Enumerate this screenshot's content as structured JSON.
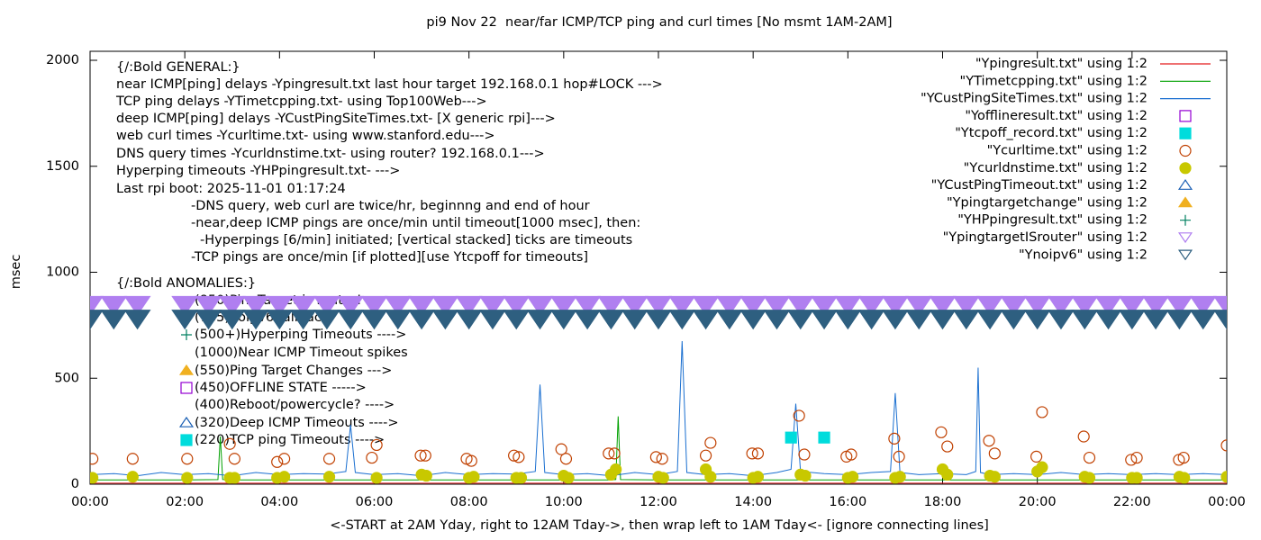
{
  "chart_data": {
    "type": "line",
    "title": "pi9 Nov 22  near/far ICMP/TCP ping and curl times [No msmt 1AM-2AM]",
    "x_label": "<-START at 2AM Yday, right to 12AM Tday->, then wrap left to 1AM Tday<- [ignore connecting lines]",
    "y_label": "msec",
    "xlim": [
      0,
      24
    ],
    "xticks": [
      {
        "value": 0,
        "label": "00:00"
      },
      {
        "value": 2,
        "label": "02:00"
      },
      {
        "value": 4,
        "label": "04:00"
      },
      {
        "value": 6,
        "label": "06:00"
      },
      {
        "value": 8,
        "label": "08:00"
      },
      {
        "value": 10,
        "label": "10:00"
      },
      {
        "value": 12,
        "label": "12:00"
      },
      {
        "value": 14,
        "label": "14:00"
      },
      {
        "value": 16,
        "label": "16:00"
      },
      {
        "value": 18,
        "label": "18:00"
      },
      {
        "value": 20,
        "label": "20:00"
      },
      {
        "value": 22,
        "label": "22:00"
      },
      {
        "value": 24,
        "label": "00:00"
      }
    ],
    "ylim": [
      0,
      2000
    ],
    "yticks": [
      0,
      500,
      1000,
      1500,
      2000
    ],
    "grid": false,
    "legend": "top-right",
    "annotations": [
      "{/:Bold GENERAL:}",
      "near ICMP[ping] delays -Ypingresult.txt last hour target 192.168.0.1 hop#LOCK --->",
      "TCP ping delays -YTimetcpping.txt- using Top100Web--->",
      "deep ICMP[ping] delays -YCustPingSiteTimes.txt- [X generic rpi]--->",
      "web curl times -Ycurltime.txt- using www.stanford.edu--->",
      "DNS query times -Ycurldnstime.txt- using router? 192.168.0.1--->",
      "Hyperping timeouts -YHPpingresult.txt- --->",
      "Last rpi boot: 2025-11-01 01:17:24",
      "-DNS query, web curl are twice/hr, beginnng and end of hour",
      "-near,deep ICMP pings are once/min until timeout[1000 msec], then:",
      "-Hyperpings [6/min] initiated; [vertical stacked] ticks are timeouts",
      "-TCP pings are once/min [if plotted][use Ytcpoff for timeouts]",
      "{/:Bold ANOMALIES:}",
      "(850)PingTarget is router!",
      "(785)noipv6 fallback",
      "(500+)Hyperping Timeouts ---->",
      "(1000)Near ICMP Timeout spikes",
      "(550)Ping Target Changes --->",
      "(450)OFFLINE STATE ----->",
      "(400)Reboot/powercycle? ---->",
      "(320)Deep ICMP Timeouts ---->",
      "(220)TCP ping Timeouts ---->"
    ],
    "series": [
      {
        "name": "\"Ypingresult.txt\" using 1:2",
        "color": "#e41a1c",
        "marker": "line",
        "x": [
          0,
          24
        ],
        "values": [
          5,
          5
        ]
      },
      {
        "name": "\"YTimetcpping.txt\" using 1:2",
        "color": "#00a000",
        "marker": "line",
        "x": [
          0,
          1,
          2,
          2.7,
          2.75,
          2.8,
          3,
          4,
          5,
          6,
          7,
          8,
          9,
          10,
          11,
          11.1,
          11.15,
          11.2,
          12,
          13,
          14,
          15,
          16,
          17,
          18,
          19,
          20,
          21,
          22,
          23,
          24
        ],
        "values": [
          20,
          20,
          20,
          22,
          225,
          22,
          20,
          20,
          20,
          20,
          20,
          20,
          20,
          20,
          20,
          22,
          320,
          22,
          20,
          20,
          20,
          20,
          20,
          20,
          20,
          20,
          20,
          20,
          20,
          20,
          20
        ]
      },
      {
        "name": "\"YCustPingSiteTimes.txt\" using 1:2",
        "color": "#1a6fd0",
        "marker": "line",
        "x": [
          0,
          0.5,
          1,
          1.5,
          2,
          2.5,
          3,
          3.5,
          4,
          4.5,
          5,
          5.4,
          5.5,
          5.6,
          6,
          6.5,
          7,
          7.5,
          8,
          8.5,
          9,
          9.4,
          9.5,
          9.6,
          10,
          10.5,
          11,
          11.5,
          12,
          12.4,
          12.5,
          12.6,
          13,
          13.5,
          14,
          14.5,
          14.8,
          14.9,
          15,
          15.5,
          16,
          16.5,
          16.9,
          17,
          17.1,
          17.5,
          18,
          18.5,
          18.7,
          18.75,
          18.8,
          19,
          19.5,
          20,
          20.5,
          21,
          21.5,
          22,
          22.5,
          23,
          23.5,
          24
        ],
        "values": [
          45,
          50,
          40,
          55,
          45,
          50,
          40,
          55,
          45,
          50,
          48,
          60,
          280,
          55,
          45,
          50,
          40,
          55,
          45,
          50,
          48,
          60,
          470,
          55,
          45,
          50,
          40,
          55,
          45,
          60,
          675,
          55,
          45,
          50,
          40,
          55,
          70,
          380,
          60,
          50,
          45,
          55,
          60,
          430,
          55,
          45,
          50,
          45,
          60,
          550,
          55,
          45,
          50,
          45,
          55,
          45,
          50,
          45,
          50,
          45,
          50,
          45
        ]
      },
      {
        "name": "\"Yofflineresult.txt\" using 1:2",
        "color": "#9400d3",
        "marker": "square-open",
        "x": [],
        "values": []
      },
      {
        "name": "\"Ytcpoff_record.txt\" using 1:2",
        "color": "#00dcdc",
        "marker": "square",
        "x": [
          14.8,
          15.5
        ],
        "values": [
          220,
          220
        ]
      },
      {
        "name": "\"Ycurltime.txt\" using 1:2",
        "color": "#c04000",
        "marker": "circle-open",
        "x": [
          0.05,
          0.9,
          2.05,
          2.95,
          3.05,
          3.95,
          4.1,
          5.05,
          5.95,
          6.05,
          6.98,
          7.08,
          7.95,
          8.05,
          8.95,
          9.05,
          9.95,
          10.05,
          10.95,
          11.07,
          11.95,
          12.08,
          13,
          13.1,
          13.98,
          14.1,
          14.97,
          15.08,
          15.97,
          16.07,
          16.98,
          17.08,
          17.97,
          18.1,
          18.98,
          19.1,
          19.98,
          20.1,
          20.98,
          21.1,
          21.98,
          22.1,
          22.99,
          23.09,
          24
        ],
        "values": [
          120,
          120,
          120,
          190,
          120,
          105,
          120,
          120,
          125,
          185,
          135,
          135,
          120,
          110,
          135,
          128,
          165,
          120,
          145,
          145,
          128,
          120,
          135,
          195,
          145,
          145,
          323,
          140,
          130,
          140,
          215,
          130,
          245,
          178,
          205,
          145,
          130,
          340,
          225,
          125,
          115,
          125,
          115,
          125,
          183
        ]
      },
      {
        "name": "\"Ycurldnstime.txt\" using 1:2",
        "color": "#c8c800",
        "marker": "dot",
        "x": [
          0.05,
          0.9,
          2.05,
          2.95,
          3.05,
          3.95,
          4.1,
          5.05,
          6.05,
          7,
          7.1,
          8,
          8.1,
          9,
          9.1,
          10,
          10.1,
          11,
          11.1,
          12,
          12.1,
          13,
          13.1,
          14,
          14.1,
          15,
          15.1,
          16,
          16.1,
          17,
          17.1,
          18,
          18.1,
          19,
          19.1,
          20,
          20.1,
          21,
          21.1,
          22,
          22.1,
          23,
          23.1,
          24
        ],
        "values": [
          30,
          35,
          30,
          30,
          30,
          30,
          35,
          35,
          30,
          45,
          40,
          30,
          35,
          30,
          30,
          40,
          30,
          45,
          70,
          35,
          30,
          70,
          35,
          30,
          35,
          45,
          40,
          30,
          35,
          30,
          35,
          70,
          45,
          40,
          35,
          60,
          80,
          35,
          30,
          30,
          30,
          35,
          30,
          35
        ]
      },
      {
        "name": "\"YCustPingTimeout.txt\" using 1:2",
        "color": "#1a5fb4",
        "marker": "triangle-open",
        "x": [],
        "values": []
      },
      {
        "name": "\"Ypingtargetchange\" using 1:2",
        "color": "#f0b020",
        "marker": "triangle",
        "x": [],
        "values": []
      },
      {
        "name": "\"YHPpingresult.txt\" using 1:2",
        "color": "#008060",
        "marker": "plus",
        "x": [],
        "values": []
      },
      {
        "name": "\"YpingtargetISrouter\" using 1:2",
        "color": "#b07ff0",
        "marker": "triangle-down-open",
        "x": [
          0,
          0.5,
          1,
          2,
          2.5,
          3,
          3.5,
          4,
          4.5,
          5,
          5.5,
          6,
          6.5,
          7,
          7.5,
          8,
          8.5,
          9,
          9.5,
          10,
          10.5,
          11,
          11.5,
          12,
          12.5,
          13,
          13.5,
          14,
          14.5,
          15,
          15.5,
          16,
          16.5,
          17,
          17.5,
          18,
          18.5,
          19,
          19.5,
          20,
          20.5,
          21,
          21.5,
          22,
          22.5,
          23,
          23.5,
          24
        ],
        "values": [
          850,
          850,
          850,
          850,
          850,
          850,
          850,
          850,
          850,
          850,
          850,
          850,
          850,
          850,
          850,
          850,
          850,
          850,
          850,
          850,
          850,
          850,
          850,
          850,
          850,
          850,
          850,
          850,
          850,
          850,
          850,
          850,
          850,
          850,
          850,
          850,
          850,
          850,
          850,
          850,
          850,
          850,
          850,
          850,
          850,
          850,
          850,
          850
        ]
      },
      {
        "name": "\"Ynoipv6\" using 1:2",
        "color": "#2e5f80",
        "marker": "triangle-down-open",
        "x": [
          0,
          0.5,
          1,
          2,
          2.5,
          3,
          3.5,
          4,
          4.5,
          5,
          5.5,
          6,
          6.5,
          7,
          7.5,
          8,
          8.5,
          9,
          9.5,
          10,
          10.5,
          11,
          11.5,
          12,
          12.5,
          13,
          13.5,
          14,
          14.5,
          15,
          15.5,
          16,
          16.5,
          17,
          17.5,
          18,
          18.5,
          19,
          19.5,
          20,
          20.5,
          21,
          21.5,
          22,
          22.5,
          23,
          23.5,
          24
        ],
        "values": [
          785,
          785,
          785,
          785,
          785,
          785,
          785,
          785,
          785,
          785,
          785,
          785,
          785,
          785,
          785,
          785,
          785,
          785,
          785,
          785,
          785,
          785,
          785,
          785,
          785,
          785,
          785,
          785,
          785,
          785,
          785,
          785,
          785,
          785,
          785,
          785,
          785,
          785,
          785,
          785,
          785,
          785,
          785,
          785,
          785,
          785,
          785,
          785
        ]
      }
    ]
  }
}
